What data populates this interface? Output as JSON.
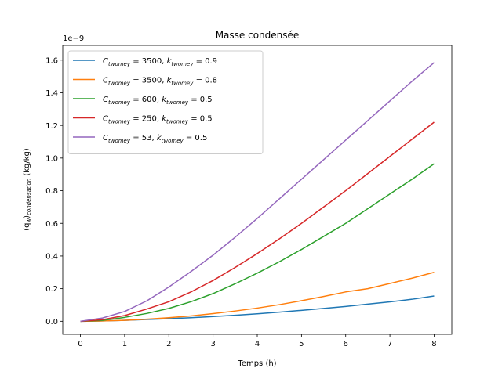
{
  "chart_data": {
    "type": "line",
    "title": "Masse condensée",
    "xlabel": "Temps (h)",
    "ylabel": "(q_w)_condensation (kg/kg)",
    "ylabel_main": "(q",
    "ylabel_sub1": "w",
    "ylabel_mid": ")",
    "ylabel_sub2": "condensation",
    "ylabel_unit": " (kg/kg)",
    "y_offset_label": "1e−9",
    "xlim": [
      -0.4,
      8.4
    ],
    "ylim": [
      -0.08,
      1.69
    ],
    "x_ticks": [
      0,
      1,
      2,
      3,
      4,
      5,
      6,
      7,
      8
    ],
    "x_tick_labels": [
      "0",
      "1",
      "2",
      "3",
      "4",
      "5",
      "6",
      "7",
      "8"
    ],
    "y_ticks": [
      0.0,
      0.2,
      0.4,
      0.6,
      0.8,
      1.0,
      1.2,
      1.4,
      1.6
    ],
    "y_tick_labels": [
      "0.0",
      "0.2",
      "0.4",
      "0.6",
      "0.8",
      "1.0",
      "1.2",
      "1.4",
      "1.6"
    ],
    "grid": false,
    "legend_position": "top-left",
    "x": [
      0,
      0.5,
      1,
      1.5,
      2,
      2.5,
      3,
      3.5,
      4,
      4.5,
      5,
      5.5,
      6,
      6.5,
      7,
      7.5,
      8
    ],
    "series": [
      {
        "name": "C_twomey = 3500, k_twomey = 0.9",
        "legend_c": "3500",
        "legend_k": "0.9",
        "color": "#1f77b4",
        "values": [
          0.0,
          0.002,
          0.006,
          0.011,
          0.016,
          0.022,
          0.029,
          0.037,
          0.046,
          0.056,
          0.067,
          0.079,
          0.091,
          0.105,
          0.119,
          0.135,
          0.155
        ]
      },
      {
        "name": "C_twomey = 3500, k_twomey = 0.8",
        "legend_c": "3500",
        "legend_k": "0.8",
        "color": "#ff7f0e",
        "values": [
          0.0,
          0.002,
          0.006,
          0.013,
          0.022,
          0.033,
          0.047,
          0.063,
          0.081,
          0.102,
          0.126,
          0.152,
          0.18,
          0.2,
          0.232,
          0.264,
          0.3
        ]
      },
      {
        "name": "C_twomey = 600, k_twomey = 0.5",
        "legend_c": "600",
        "legend_k": "0.5",
        "color": "#2ca02c",
        "values": [
          0.0,
          0.006,
          0.024,
          0.048,
          0.079,
          0.12,
          0.17,
          0.23,
          0.295,
          0.365,
          0.44,
          0.52,
          0.6,
          0.69,
          0.78,
          0.87,
          0.965
        ]
      },
      {
        "name": "C_twomey = 250, k_twomey = 0.5",
        "legend_c": "250",
        "legend_k": "0.5",
        "color": "#d62728",
        "values": [
          0.0,
          0.01,
          0.035,
          0.075,
          0.12,
          0.18,
          0.25,
          0.33,
          0.415,
          0.505,
          0.6,
          0.7,
          0.8,
          0.905,
          1.01,
          1.115,
          1.22
        ]
      },
      {
        "name": "C_twomey = 53, k_twomey = 0.5",
        "legend_c": "53",
        "legend_k": "0.5",
        "color": "#9467bd",
        "values": [
          0.0,
          0.02,
          0.06,
          0.125,
          0.21,
          0.305,
          0.405,
          0.515,
          0.63,
          0.75,
          0.87,
          0.99,
          1.11,
          1.23,
          1.35,
          1.47,
          1.585
        ]
      }
    ]
  }
}
